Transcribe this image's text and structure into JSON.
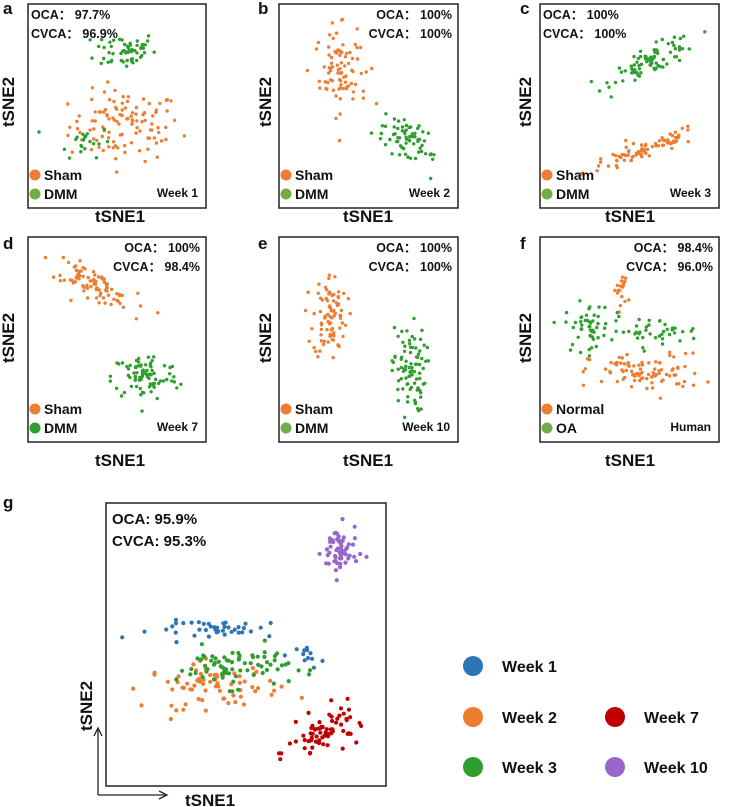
{
  "colors": {
    "orange": "#ED7D31",
    "green_dark": "#2E9E2E",
    "green_light": "#70AD47",
    "blue": "#2E75B6",
    "red": "#C00000",
    "purple": "#9966CC"
  },
  "chart_data": [
    {
      "panel": "a",
      "type": "scatter",
      "xlabel": "tSNE1",
      "ylabel": "tSNE2",
      "metrics": [
        "OCA： 97.7%",
        "CVCA： 96.9%"
      ],
      "metrics_align": "left",
      "label": "Week 1",
      "legend": [
        {
          "name": "Sham",
          "color": "#ED7D31"
        },
        {
          "name": "DMM",
          "color": "#70AD47"
        }
      ],
      "series": [
        {
          "name": "Sham",
          "color": "#ED7D31",
          "clusters": [
            {
              "cx": 0.55,
              "cy": 0.4,
              "sx": 0.4,
              "sy": 0.22,
              "n": 110,
              "angle": 0
            }
          ]
        },
        {
          "name": "DMM",
          "color": "#2E9E2E",
          "clusters": [
            {
              "cx": 0.55,
              "cy": 0.8,
              "sx": 0.22,
              "sy": 0.12,
              "n": 55,
              "angle": 0
            },
            {
              "cx": 0.3,
              "cy": 0.32,
              "sx": 0.2,
              "sy": 0.1,
              "n": 20,
              "angle": 0
            }
          ]
        }
      ]
    },
    {
      "panel": "b",
      "type": "scatter",
      "xlabel": "tSNE1",
      "ylabel": "tSNE2",
      "metrics": [
        "OCA： 100%",
        "CVCA： 100%"
      ],
      "metrics_align": "right",
      "label": "Week 2",
      "legend": [
        {
          "name": "Sham",
          "color": "#ED7D31"
        },
        {
          "name": "DMM",
          "color": "#70AD47"
        }
      ],
      "series": [
        {
          "name": "Sham",
          "color": "#ED7D31",
          "clusters": [
            {
              "cx": 0.33,
              "cy": 0.7,
              "sx": 0.16,
              "sy": 0.26,
              "n": 85,
              "angle": 10
            }
          ]
        },
        {
          "name": "DMM",
          "color": "#2E9E2E",
          "clusters": [
            {
              "cx": 0.73,
              "cy": 0.33,
              "sx": 0.24,
              "sy": 0.1,
              "n": 65,
              "angle": -30
            }
          ]
        }
      ]
    },
    {
      "panel": "c",
      "type": "scatter",
      "xlabel": "tSNE1",
      "ylabel": "tSNE2",
      "metrics": [
        "OCA： 100%",
        "CVCA： 100%"
      ],
      "metrics_align": "left",
      "label": "Week 3",
      "legend": [
        {
          "name": "Sham",
          "color": "#ED7D31"
        },
        {
          "name": "DMM",
          "color": "#70AD47"
        }
      ],
      "series": [
        {
          "name": "Sham",
          "color": "#ED7D31",
          "clusters": [
            {
              "cx": 0.58,
              "cy": 0.27,
              "sx": 0.44,
              "sy": 0.06,
              "n": 80,
              "angle": 18
            }
          ]
        },
        {
          "name": "DMM",
          "color": "#2E9E2E",
          "clusters": [
            {
              "cx": 0.65,
              "cy": 0.75,
              "sx": 0.33,
              "sy": 0.08,
              "n": 80,
              "angle": 22
            }
          ]
        }
      ]
    },
    {
      "panel": "d",
      "type": "scatter",
      "xlabel": "tSNE1",
      "ylabel": "tSNE2",
      "metrics": [
        "OCA： 100%",
        "CVCA： 98.4%"
      ],
      "metrics_align": "right",
      "label": "Week 7",
      "legend": [
        {
          "name": "Sham",
          "color": "#ED7D31"
        },
        {
          "name": "DMM",
          "color": "#2E9E2E"
        }
      ],
      "series": [
        {
          "name": "Sham",
          "color": "#ED7D31",
          "clusters": [
            {
              "cx": 0.35,
              "cy": 0.8,
              "sx": 0.32,
              "sy": 0.08,
              "n": 85,
              "angle": -25
            }
          ]
        },
        {
          "name": "DMM",
          "color": "#2E9E2E",
          "clusters": [
            {
              "cx": 0.67,
              "cy": 0.31,
              "sx": 0.24,
              "sy": 0.15,
              "n": 85,
              "angle": 0
            }
          ]
        }
      ]
    },
    {
      "panel": "e",
      "type": "scatter",
      "xlabel": "tSNE1",
      "ylabel": "tSNE2",
      "metrics": [
        "OCA： 100%",
        "CVCA： 100%"
      ],
      "metrics_align": "right",
      "label": "Week 10",
      "legend": [
        {
          "name": "Sham",
          "color": "#ED7D31"
        },
        {
          "name": "DMM",
          "color": "#70AD47"
        }
      ],
      "series": [
        {
          "name": "Sham",
          "color": "#ED7D31",
          "clusters": [
            {
              "cx": 0.27,
              "cy": 0.63,
              "sx": 0.12,
              "sy": 0.27,
              "n": 85,
              "angle": 0
            }
          ]
        },
        {
          "name": "DMM",
          "color": "#2E9E2E",
          "clusters": [
            {
              "cx": 0.74,
              "cy": 0.35,
              "sx": 0.12,
              "sy": 0.27,
              "n": 85,
              "angle": 0
            }
          ]
        }
      ]
    },
    {
      "panel": "f",
      "type": "scatter",
      "xlabel": "tSNE1",
      "ylabel": "tSNE2",
      "metrics": [
        "OCA： 98.4%",
        "CVCA： 96.0%"
      ],
      "metrics_align": "right",
      "label": "Human",
      "legend": [
        {
          "name": "Normal",
          "color": "#ED7D31"
        },
        {
          "name": "OA",
          "color": "#70AD47"
        }
      ],
      "series": [
        {
          "name": "Normal",
          "color": "#ED7D31",
          "clusters": [
            {
              "cx": 0.6,
              "cy": 0.33,
              "sx": 0.4,
              "sy": 0.12,
              "n": 90,
              "angle": 0
            },
            {
              "cx": 0.45,
              "cy": 0.76,
              "sx": 0.05,
              "sy": 0.12,
              "n": 18,
              "angle": 0
            }
          ]
        },
        {
          "name": "OA",
          "color": "#2E9E2E",
          "clusters": [
            {
              "cx": 0.25,
              "cy": 0.57,
              "sx": 0.16,
              "sy": 0.15,
              "n": 50,
              "angle": 0
            },
            {
              "cx": 0.65,
              "cy": 0.55,
              "sx": 0.32,
              "sy": 0.08,
              "n": 40,
              "angle": 0
            }
          ]
        }
      ]
    },
    {
      "panel": "g",
      "type": "scatter",
      "xlabel": "tSNE1",
      "ylabel": "tSNE2",
      "metrics": [
        "OCA: 95.9%",
        "CVCA: 95.3%"
      ],
      "metrics_align": "left",
      "legend": [
        {
          "name": "Week 1",
          "color": "#2E75B6"
        },
        {
          "name": "Week 2",
          "color": "#ED7D31"
        },
        {
          "name": "Week 3",
          "color": "#2E9E2E"
        },
        {
          "name": "Week 7",
          "color": "#C00000"
        },
        {
          "name": "Week 10",
          "color": "#9966CC"
        }
      ],
      "series": [
        {
          "name": "Week 1",
          "color": "#2E75B6",
          "clusters": [
            {
              "cx": 0.43,
              "cy": 0.56,
              "sx": 0.33,
              "sy": 0.04,
              "n": 40,
              "angle": 0
            },
            {
              "cx": 0.74,
              "cy": 0.46,
              "sx": 0.06,
              "sy": 0.05,
              "n": 12,
              "angle": 0
            }
          ]
        },
        {
          "name": "Week 2",
          "color": "#ED7D31",
          "clusters": [
            {
              "cx": 0.38,
              "cy": 0.35,
              "sx": 0.3,
              "sy": 0.1,
              "n": 70,
              "angle": 0
            }
          ]
        },
        {
          "name": "Week 3",
          "color": "#2E9E2E",
          "clusters": [
            {
              "cx": 0.45,
              "cy": 0.42,
              "sx": 0.25,
              "sy": 0.09,
              "n": 75,
              "angle": 0
            }
          ]
        },
        {
          "name": "Week 7",
          "color": "#C00000",
          "clusters": [
            {
              "cx": 0.8,
              "cy": 0.18,
              "sx": 0.18,
              "sy": 0.08,
              "n": 70,
              "angle": 25
            }
          ]
        },
        {
          "name": "Week 10",
          "color": "#9966CC",
          "clusters": [
            {
              "cx": 0.85,
              "cy": 0.85,
              "sx": 0.08,
              "sy": 0.12,
              "n": 60,
              "angle": 0
            }
          ]
        }
      ]
    }
  ]
}
